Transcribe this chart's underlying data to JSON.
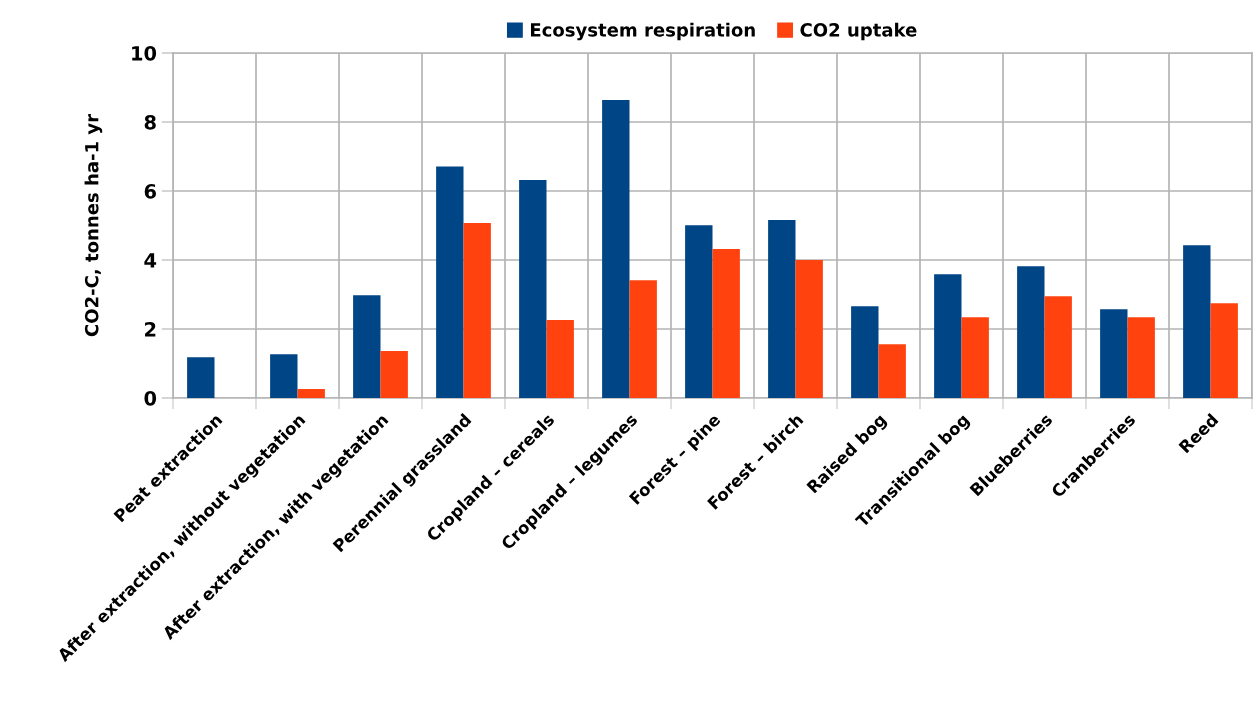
{
  "chart_data": {
    "type": "bar",
    "ylabel": "CO2-C, tonnes ha-1 yr",
    "categories": [
      "Peat extraction",
      "After extraction, without vegetation",
      "After extraction, with vegetation",
      "Perennial grassland",
      "Cropland – cereals",
      "Cropland – legumes",
      "Forest – pine",
      "Forest – birch",
      "Raised bog",
      "Transitional bog",
      "Blueberries",
      "Cranberries",
      "Reed"
    ],
    "series": [
      {
        "name": "Ecosystem respiration",
        "color": "#004586",
        "values": [
          1.18,
          1.27,
          2.98,
          6.71,
          6.32,
          8.64,
          5.01,
          5.16,
          2.66,
          3.59,
          3.82,
          2.57,
          4.43
        ]
      },
      {
        "name": "CO2 uptake",
        "color": "#ff420e",
        "values": [
          null,
          0.26,
          1.36,
          5.07,
          2.26,
          3.41,
          4.32,
          4.0,
          1.56,
          2.34,
          2.95,
          2.34,
          2.75
        ]
      }
    ],
    "ylim": [
      0,
      10
    ],
    "yticks": [
      0,
      2,
      4,
      6,
      8,
      10
    ],
    "grid": true,
    "legend": "top"
  }
}
